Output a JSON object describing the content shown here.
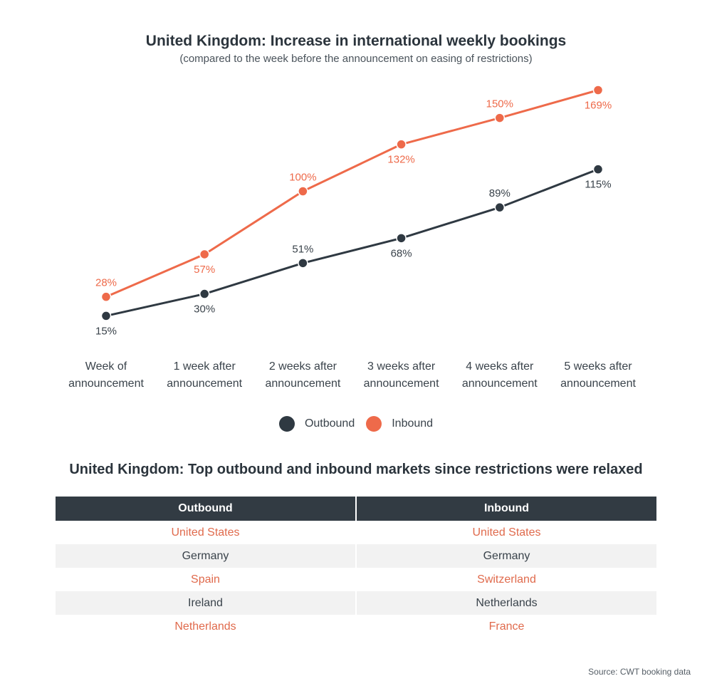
{
  "chart_data": {
    "type": "line",
    "title": "United Kingdom: Increase in international weekly bookings",
    "subtitle": "(compared to the week before the announcement on easing of restrictions)",
    "categories": [
      [
        "Week of",
        "announcement"
      ],
      [
        "1 week after",
        "announcement"
      ],
      [
        "2 weeks after",
        "announcement"
      ],
      [
        "3 weeks after",
        "announcement"
      ],
      [
        "4 weeks after",
        "announcement"
      ],
      [
        "5 weeks after",
        "announcement"
      ]
    ],
    "series": [
      {
        "name": "Outbound",
        "color": "#2f3942",
        "values": [
          15,
          30,
          51,
          68,
          89,
          115
        ],
        "labels": [
          "15%",
          "30%",
          "51%",
          "68%",
          "89%",
          "115%"
        ],
        "label_position": [
          "below",
          "below",
          "above",
          "below",
          "above",
          "below"
        ]
      },
      {
        "name": "Inbound",
        "color": "#ee6a4a",
        "values": [
          28,
          57,
          100,
          132,
          150,
          169
        ],
        "labels": [
          "28%",
          "57%",
          "100%",
          "132%",
          "150%",
          "169%"
        ],
        "label_position": [
          "above",
          "below",
          "above",
          "below",
          "above",
          "below"
        ]
      }
    ],
    "grid": false,
    "legend": "bottom-center"
  },
  "table": {
    "title": "United Kingdom: Top outbound and inbound markets since restrictions were relaxed",
    "headers": [
      "Outbound",
      "Inbound"
    ],
    "rows": [
      [
        "United States",
        "United States"
      ],
      [
        "Germany",
        "Germany"
      ],
      [
        "Spain",
        "Switzerland"
      ],
      [
        "Ireland",
        "Netherlands"
      ],
      [
        "Netherlands",
        "France"
      ]
    ],
    "accent_color": "#e06a4c",
    "header_color": "#323b43"
  },
  "source": "Source: CWT booking data"
}
